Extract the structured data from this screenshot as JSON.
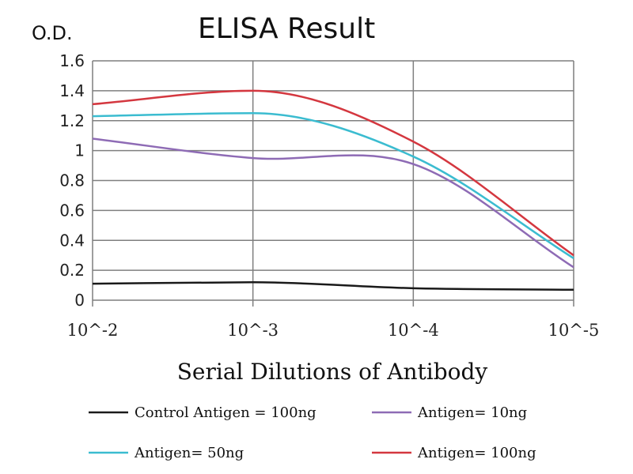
{
  "chart_data": {
    "type": "line",
    "title": "ELISA Result",
    "ylabel": "O.D.",
    "xlabel": "Serial Dilutions of Antibody",
    "x": [
      "10^-2",
      "10^-3",
      "10^-4",
      "10^-5"
    ],
    "ylim": [
      0,
      1.6
    ],
    "yticks": [
      "0",
      "0.2",
      "0.4",
      "0.6",
      "0.8",
      "1",
      "1.2",
      "1.4",
      "1.6"
    ],
    "grid": true,
    "legend_position": "bottom",
    "series": [
      {
        "name": "Control Antigen = 100ng",
        "color": "#1a1a1a",
        "values": [
          0.11,
          0.12,
          0.08,
          0.07
        ]
      },
      {
        "name": "Antigen= 10ng",
        "color": "#8e6bb5",
        "values": [
          1.08,
          0.95,
          0.91,
          0.22
        ]
      },
      {
        "name": "Antigen= 50ng",
        "color": "#3bbcd0",
        "values": [
          1.23,
          1.25,
          0.96,
          0.28
        ]
      },
      {
        "name": "Antigen= 100ng",
        "color": "#d4373f",
        "values": [
          1.31,
          1.4,
          1.06,
          0.3
        ]
      }
    ]
  }
}
